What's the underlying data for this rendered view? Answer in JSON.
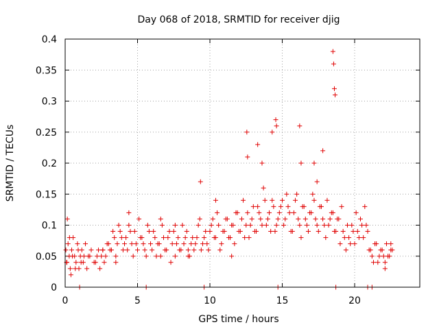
{
  "chart_data": {
    "type": "scatter",
    "title": "Day 068 of 2018, SRMTID for receiver djig",
    "xlabel": "GPS time / hours",
    "ylabel": "SRMTID / TECUs",
    "xlim": [
      0,
      24.5
    ],
    "ylim": [
      0,
      0.4
    ],
    "xticks": [
      0,
      5,
      10,
      15,
      20
    ],
    "xtick_labels": [
      "0",
      "5",
      "10",
      "15",
      "20"
    ],
    "yticks": [
      0,
      0.05,
      0.1,
      0.15,
      0.2,
      0.25,
      0.3,
      0.35,
      0.4
    ],
    "ytick_labels": [
      "0",
      "0.05",
      "0.1",
      "0.15",
      "0.2",
      "0.25",
      "0.3",
      "0.35",
      "0.4"
    ],
    "grid": true,
    "marker": "+",
    "color": "#e00000",
    "series": [
      {
        "name": "SRMTID",
        "x": [
          0.05,
          0.12,
          0.2,
          0.28,
          0.35,
          0.45,
          0.55,
          0.65,
          0.75,
          0.85,
          0.95,
          1.05,
          1.15,
          1.25,
          1.4,
          1.6,
          1.8,
          2.0,
          2.2,
          2.4,
          2.6,
          2.8,
          3.0,
          3.2,
          3.4,
          3.6,
          3.8,
          4.0,
          4.2,
          4.4,
          4.6,
          4.8,
          5.0,
          5.2,
          5.4,
          5.6,
          5.8,
          6.0,
          6.2,
          6.4,
          6.6,
          6.8,
          7.0,
          7.2,
          7.4,
          7.6,
          7.8,
          8.0,
          8.2,
          8.4,
          8.6,
          8.8,
          9.0,
          9.2,
          9.4,
          9.6,
          9.8,
          10.0,
          10.2,
          10.4,
          10.6,
          10.8,
          11.0,
          11.2,
          11.4,
          11.6,
          11.8,
          12.0,
          12.2,
          12.4,
          12.6,
          12.8,
          13.0,
          13.2,
          13.4,
          13.6,
          13.8,
          14.0,
          14.2,
          14.4,
          14.6,
          14.8,
          15.0,
          15.2,
          15.4,
          15.6,
          15.8,
          16.0,
          16.2,
          16.4,
          16.6,
          16.8,
          17.0,
          17.2,
          17.4,
          17.6,
          17.8,
          18.0,
          18.2,
          18.4,
          18.6,
          18.8,
          19.0,
          19.2,
          19.4,
          19.6,
          19.8,
          20.0,
          20.2,
          20.4,
          20.6,
          20.8,
          21.0,
          21.2,
          21.4,
          21.6,
          21.8,
          22.0,
          22.2,
          22.4,
          22.6,
          0.1,
          0.3,
          0.5,
          0.7,
          0.9,
          1.1,
          1.3,
          1.5,
          1.7,
          2.1,
          2.3,
          2.5,
          2.7,
          2.9,
          3.1,
          3.3,
          3.5,
          3.7,
          3.9,
          4.1,
          4.3,
          4.5,
          4.7,
          4.9,
          5.1,
          5.3,
          5.5,
          5.7,
          5.9,
          6.1,
          6.3,
          6.5,
          6.7,
          6.9,
          7.1,
          7.3,
          7.5,
          7.7,
          7.9,
          8.1,
          8.3,
          8.5,
          8.7,
          8.9,
          9.1,
          9.3,
          9.5,
          9.7,
          9.9,
          10.1,
          10.3,
          10.5,
          10.7,
          10.9,
          11.1,
          11.3,
          11.5,
          11.7,
          11.9,
          12.1,
          12.3,
          12.5,
          12.7,
          12.9,
          13.1,
          13.3,
          13.5,
          13.7,
          13.9,
          14.1,
          14.3,
          14.5,
          14.7,
          14.9,
          15.1,
          15.3,
          15.5,
          15.7,
          15.9,
          16.1,
          16.3,
          16.5,
          16.7,
          16.9,
          17.1,
          17.3,
          17.5,
          17.7,
          17.9,
          18.1,
          18.3,
          18.5,
          18.7,
          18.9,
          19.1,
          19.3,
          19.5,
          19.7,
          19.9,
          20.1,
          20.3,
          20.5,
          20.7,
          20.9,
          21.1,
          21.3,
          21.5,
          21.7,
          21.9,
          22.1,
          22.3,
          22.5,
          0.15,
          0.4,
          1.0,
          2.6,
          3.5,
          4.4,
          5.6,
          6.6,
          7.6,
          8.5,
          9.35,
          9.6,
          10.4,
          11.5,
          12.55,
          12.6,
          13.3,
          13.6,
          14.3,
          14.55,
          14.6,
          14.7,
          16.2,
          16.3,
          17.2,
          17.4,
          17.8,
          18.5,
          18.55,
          18.6,
          18.65,
          18.7,
          20.9,
          21.2,
          22.1,
          22.5
        ],
        "y": [
          0.06,
          0.04,
          0.07,
          0.05,
          0.03,
          0.06,
          0.08,
          0.05,
          0.04,
          0.07,
          0.03,
          0.05,
          0.06,
          0.04,
          0.07,
          0.05,
          0.06,
          0.04,
          0.05,
          0.03,
          0.06,
          0.05,
          0.07,
          0.06,
          0.08,
          0.07,
          0.09,
          0.06,
          0.08,
          0.1,
          0.07,
          0.09,
          0.06,
          0.08,
          0.07,
          0.05,
          0.09,
          0.06,
          0.08,
          0.07,
          0.05,
          0.08,
          0.06,
          0.09,
          0.07,
          0.05,
          0.08,
          0.06,
          0.07,
          0.09,
          0.05,
          0.08,
          0.07,
          0.1,
          0.06,
          0.08,
          0.07,
          0.09,
          0.11,
          0.08,
          0.1,
          0.07,
          0.09,
          0.11,
          0.08,
          0.1,
          0.12,
          0.09,
          0.11,
          0.08,
          0.12,
          0.1,
          0.13,
          0.09,
          0.12,
          0.1,
          0.14,
          0.11,
          0.09,
          0.13,
          0.1,
          0.12,
          0.14,
          0.11,
          0.13,
          0.09,
          0.12,
          0.15,
          0.1,
          0.13,
          0.11,
          0.09,
          0.12,
          0.14,
          0.1,
          0.13,
          0.11,
          0.08,
          0.1,
          0.12,
          0.09,
          0.11,
          0.07,
          0.09,
          0.06,
          0.08,
          0.1,
          0.07,
          0.09,
          0.11,
          0.08,
          0.1,
          0.06,
          0.05,
          0.07,
          0.04,
          0.06,
          0.05,
          0.07,
          0.05,
          0.06,
          0.04,
          0.08,
          0.05,
          0.03,
          0.06,
          0.04,
          0.05,
          0.03,
          0.05,
          0.04,
          0.06,
          0.05,
          0.04,
          0.07,
          0.06,
          0.09,
          0.05,
          0.1,
          0.08,
          0.07,
          0.06,
          0.09,
          0.05,
          0.07,
          0.11,
          0.08,
          0.06,
          0.1,
          0.07,
          0.09,
          0.05,
          0.07,
          0.1,
          0.06,
          0.08,
          0.04,
          0.09,
          0.07,
          0.06,
          0.1,
          0.08,
          0.05,
          0.07,
          0.06,
          0.08,
          0.11,
          0.07,
          0.09,
          0.06,
          0.1,
          0.08,
          0.12,
          0.06,
          0.09,
          0.11,
          0.08,
          0.1,
          0.07,
          0.12,
          0.09,
          0.14,
          0.1,
          0.08,
          0.11,
          0.09,
          0.13,
          0.11,
          0.16,
          0.1,
          0.12,
          0.14,
          0.09,
          0.11,
          0.13,
          0.1,
          0.15,
          0.12,
          0.09,
          0.14,
          0.11,
          0.08,
          0.13,
          0.1,
          0.12,
          0.15,
          0.11,
          0.09,
          0.13,
          0.1,
          0.14,
          0.11,
          0.12,
          0.09,
          0.11,
          0.13,
          0.08,
          0.1,
          0.07,
          0.09,
          0.12,
          0.08,
          0.1,
          0.13,
          0.09,
          0.06,
          0.04,
          0.07,
          0.05,
          0.06,
          0.04,
          0.05,
          0.06,
          0.11,
          0.02,
          0.0,
          0.06,
          0.04,
          0.12,
          0.0,
          0.11,
          0.1,
          0.06,
          0.17,
          0.0,
          0.14,
          0.05,
          0.25,
          0.21,
          0.23,
          0.2,
          0.25,
          0.27,
          0.26,
          0.0,
          0.26,
          0.2,
          0.2,
          0.17,
          0.22,
          0.38,
          0.36,
          0.32,
          0.31,
          0.0,
          0.0,
          0.0,
          0.03,
          0.07
        ]
      }
    ]
  }
}
